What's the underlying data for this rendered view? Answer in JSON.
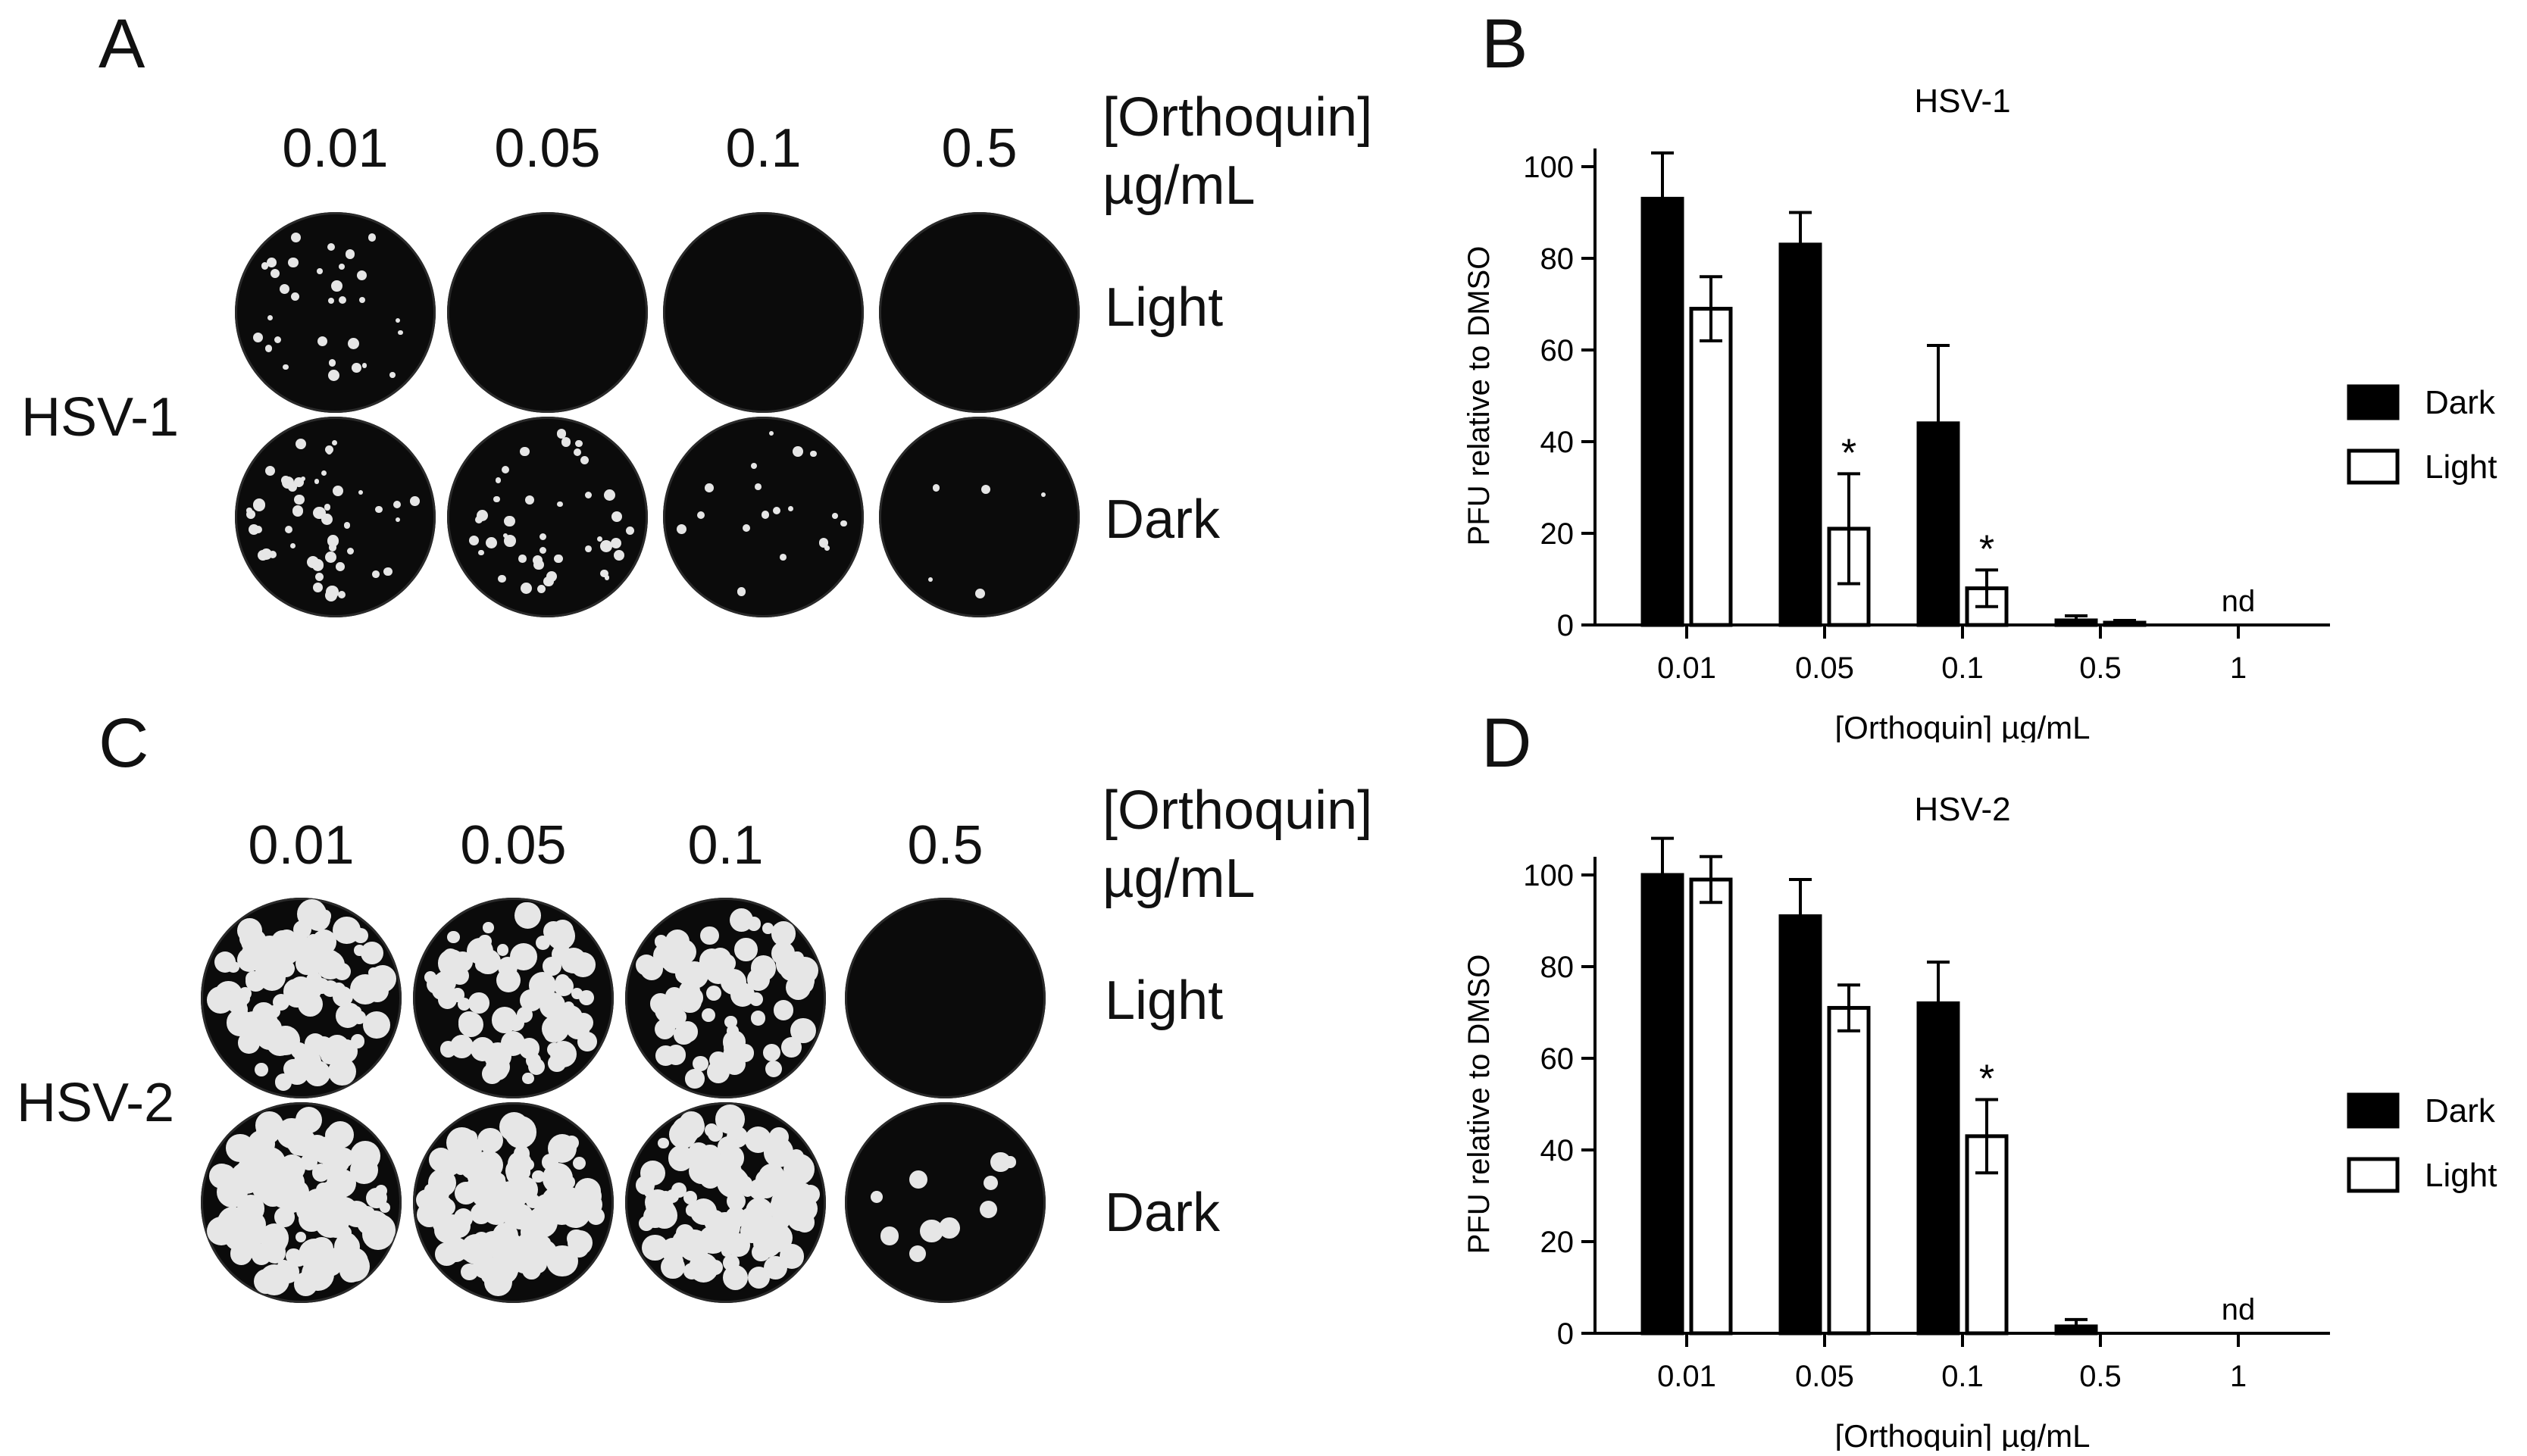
{
  "panels": {
    "A": {
      "letter": "A",
      "virus": "HSV-1",
      "axis_title_line1": "[Orthoquin]",
      "axis_title_line2": "µg/mL",
      "concentrations": [
        "0.01",
        "0.05",
        "0.1",
        "0.5"
      ],
      "rows": [
        "Light",
        "Dark"
      ],
      "plaque_level": {
        "Light": [
          0.35,
          0.0,
          0.0,
          0.0
        ],
        "Dark": [
          0.55,
          0.45,
          0.2,
          0.05
        ]
      }
    },
    "C": {
      "letter": "C",
      "virus": "HSV-2",
      "axis_title_line1": "[Orthoquin]",
      "axis_title_line2": "µg/mL",
      "concentrations": [
        "0.01",
        "0.05",
        "0.1",
        "0.5"
      ],
      "rows": [
        "Light",
        "Dark"
      ],
      "plaque_level": {
        "Light": [
          0.75,
          0.55,
          0.55,
          0.0
        ],
        "Dark": [
          1.0,
          0.9,
          0.85,
          0.08
        ]
      }
    }
  },
  "chart_data": [
    {
      "panel_letter": "B",
      "type": "bar",
      "title": "HSV-1",
      "xlabel": "[Orthoquin] µg/mL",
      "ylabel": "PFU relative to DMSO",
      "categories": [
        "0.01",
        "0.05",
        "0.1",
        "0.5",
        "1"
      ],
      "ylim": [
        0,
        100
      ],
      "yticks": [
        "0",
        "20",
        "40",
        "60",
        "80",
        "100"
      ],
      "series": [
        {
          "name": "Dark",
          "fill": "#000000",
          "values": [
            93,
            83,
            44,
            1,
            null
          ],
          "errors": [
            10,
            7,
            17,
            1,
            null
          ]
        },
        {
          "name": "Light",
          "fill": "#ffffff",
          "values": [
            69,
            21,
            8,
            0.5,
            null
          ],
          "errors": [
            7,
            12,
            4,
            0.5,
            null
          ]
        }
      ],
      "annotations": [
        {
          "category": "0.05",
          "series": "Light",
          "text": "*"
        },
        {
          "category": "0.1",
          "series": "Light",
          "text": "*"
        },
        {
          "category": "1",
          "text": "nd"
        }
      ],
      "legend_position": "right"
    },
    {
      "panel_letter": "D",
      "type": "bar",
      "title": "HSV-2",
      "xlabel": "[Orthoquin] µg/mL",
      "ylabel": "PFU relative to DMSO",
      "categories": [
        "0.01",
        "0.05",
        "0.1",
        "0.5",
        "1"
      ],
      "ylim": [
        0,
        100
      ],
      "yticks": [
        "0",
        "20",
        "40",
        "60",
        "80",
        "100"
      ],
      "series": [
        {
          "name": "Dark",
          "fill": "#000000",
          "values": [
            100,
            91,
            72,
            1.5,
            null
          ],
          "errors": [
            8,
            8,
            9,
            1.5,
            null
          ]
        },
        {
          "name": "Light",
          "fill": "#ffffff",
          "values": [
            99,
            71,
            43,
            null,
            null
          ],
          "errors": [
            5,
            5,
            8,
            null,
            null
          ]
        }
      ],
      "annotations": [
        {
          "category": "0.1",
          "series": "Light",
          "text": "*"
        },
        {
          "category": "1",
          "text": "nd"
        }
      ],
      "legend_position": "right"
    }
  ]
}
